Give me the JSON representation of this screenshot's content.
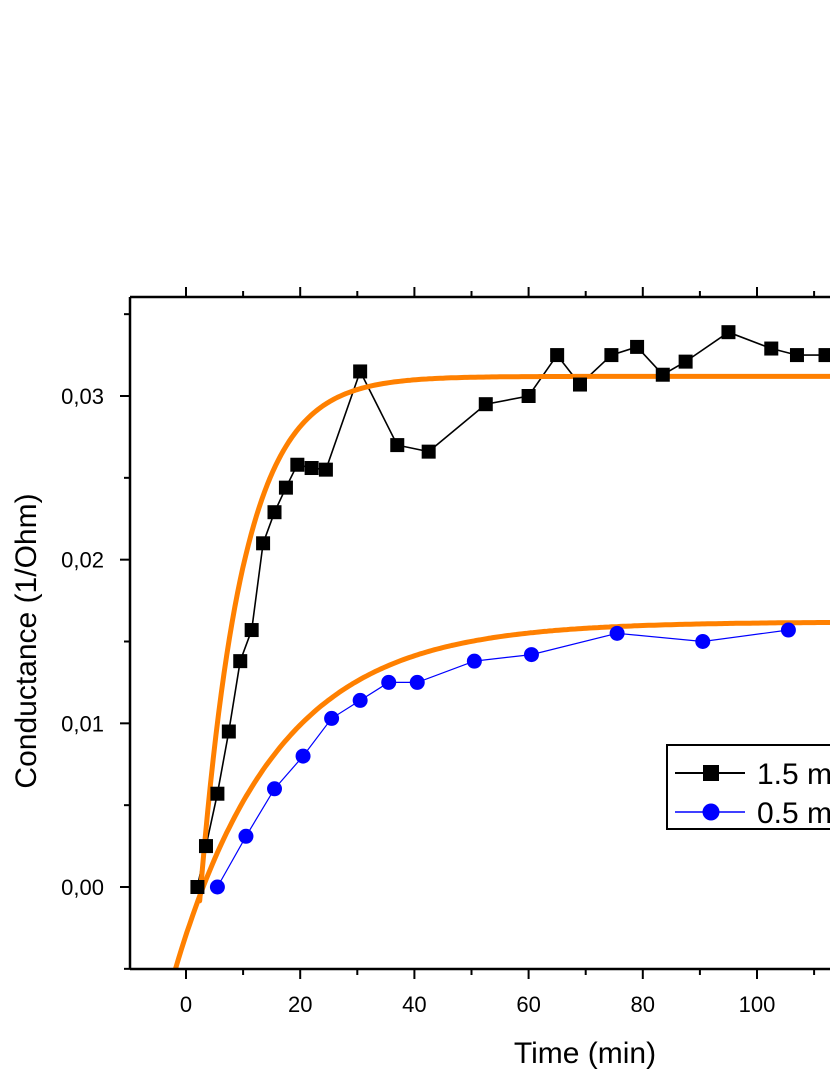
{
  "chart_data": {
    "type": "line",
    "title": "",
    "xlabel": "Time (min)",
    "ylabel": "Conductance (1/Ohm)",
    "xlim": [
      -10,
      116
    ],
    "ylim": [
      -0.005,
      0.0355
    ],
    "xticks": [
      0,
      20,
      40,
      60,
      80,
      100
    ],
    "xtick_labels": [
      "0",
      "20",
      "40",
      "60",
      "80",
      "100"
    ],
    "yticks": [
      0.0,
      0.01,
      0.02,
      0.03
    ],
    "ytick_labels": [
      "0,00",
      "0,01",
      "0,02",
      "0,03"
    ],
    "grid": false,
    "legend_position": "lower-right",
    "series": [
      {
        "name": "1.5 m",
        "color": "#000000",
        "marker": "square",
        "x": [
          2,
          3.5,
          5.5,
          7.5,
          9.5,
          11.5,
          13.5,
          15.5,
          17.5,
          19.5,
          22,
          24.5,
          30.5,
          37,
          42.5,
          52.5,
          60,
          65,
          69,
          74.5,
          79,
          83.5,
          87.5,
          95,
          102.5,
          107,
          112
        ],
        "y": [
          0.0,
          0.0025,
          0.0057,
          0.0095,
          0.0138,
          0.0157,
          0.021,
          0.0229,
          0.0244,
          0.0258,
          0.0256,
          0.0255,
          0.0315,
          0.027,
          0.0266,
          0.0295,
          0.03,
          0.0325,
          0.0307,
          0.0325,
          0.033,
          0.0313,
          0.0321,
          0.0339,
          0.0329,
          0.0325,
          0.0325
        ]
      },
      {
        "name": "0.5 m",
        "color": "#0000ff",
        "marker": "circle",
        "x": [
          5.5,
          10.5,
          15.5,
          20.5,
          25.5,
          30.5,
          35.5,
          40.5,
          50.5,
          60.5,
          75.5,
          90.5,
          105.5
        ],
        "y": [
          0.0,
          0.0031,
          0.006,
          0.008,
          0.0103,
          0.0114,
          0.0125,
          0.0125,
          0.0138,
          0.0142,
          0.0155,
          0.015,
          0.0157
        ]
      }
    ],
    "fits": [
      {
        "color": "#ff8000",
        "asymptote": 0.0312,
        "x0": 2.6,
        "tau": 7.5,
        "x_start": 2.4,
        "x_end": 116
      },
      {
        "color": "#ff8000",
        "asymptote": 0.0162,
        "x0": 3.0,
        "tau": 18.0,
        "x_start": -2.3,
        "x_end": 116
      }
    ]
  }
}
